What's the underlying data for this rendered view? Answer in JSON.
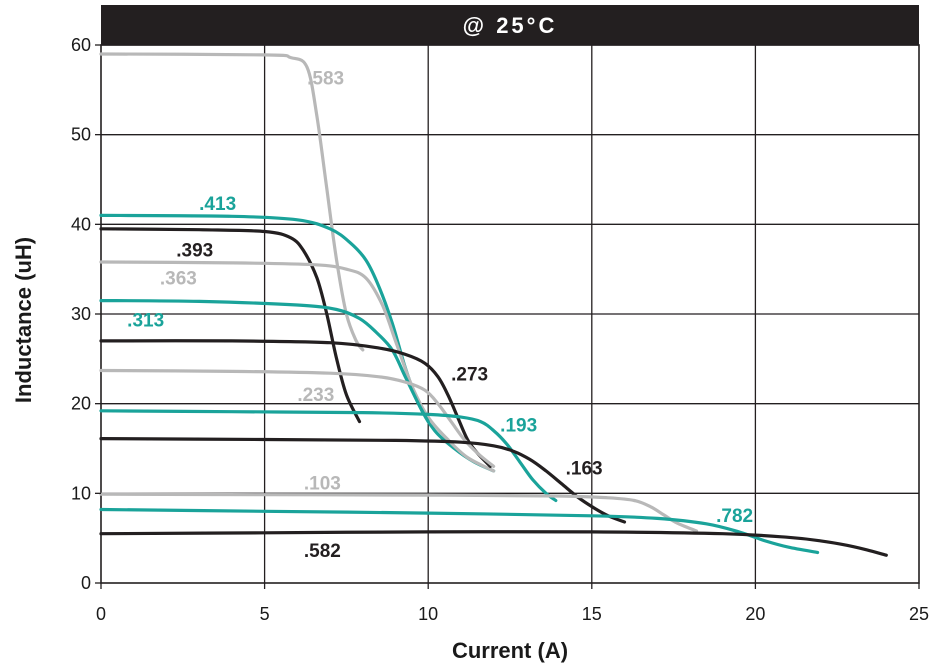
{
  "chart_data": {
    "type": "line",
    "title": "@ 25°C",
    "xlabel": "Current (A)",
    "ylabel": "Inductance (uH)",
    "xlim": [
      0,
      25
    ],
    "ylim": [
      0,
      60
    ],
    "xticks": [
      0,
      5,
      10,
      15,
      20,
      25
    ],
    "yticks": [
      0,
      10,
      20,
      30,
      40,
      50,
      60
    ],
    "xtick_labels": [
      "0",
      "5",
      "10",
      "15",
      "20",
      "25"
    ],
    "ytick_labels": [
      "0",
      "10",
      "20",
      "30",
      "40",
      "50",
      "60"
    ],
    "grid": true,
    "colors": {
      "black": "#231f20",
      "gray": "#b8b8b8",
      "teal": "#1aa39a",
      "title_bar": "#231f20"
    },
    "series": [
      {
        "name": ".583",
        "color": "gray",
        "x": [
          0,
          5,
          5.8,
          6.3,
          6.6,
          6.9,
          7.2,
          7.5,
          7.8,
          8.0
        ],
        "y": [
          59,
          58.9,
          58.6,
          57.5,
          52,
          44,
          36,
          30,
          27,
          26
        ]
      },
      {
        "name": ".413",
        "color": "teal",
        "x": [
          0,
          4,
          6,
          7,
          7.6,
          8.1,
          8.5,
          8.9,
          9.3,
          9.7,
          10.2,
          10.8,
          11.4,
          12.0
        ],
        "y": [
          41,
          40.9,
          40.5,
          39.5,
          38,
          36,
          33,
          29,
          24,
          20,
          17,
          15,
          13.5,
          12.5
        ]
      },
      {
        "name": ".393",
        "color": "black",
        "x": [
          0,
          3,
          5,
          5.8,
          6.2,
          6.6,
          6.9,
          7.2,
          7.5,
          7.9
        ],
        "y": [
          39.5,
          39.4,
          39.2,
          38.5,
          37,
          34,
          30,
          25,
          21,
          18
        ]
      },
      {
        "name": ".363",
        "color": "gray",
        "x": [
          0,
          4,
          6.5,
          7.5,
          8.1,
          8.6,
          9.0,
          9.5,
          10.0,
          10.6,
          11.2,
          12.0
        ],
        "y": [
          35.8,
          35.7,
          35.5,
          35,
          34,
          31,
          27,
          22,
          18.5,
          16,
          14,
          12.5
        ]
      },
      {
        "name": ".313",
        "color": "teal",
        "x": [
          0,
          3,
          6,
          7.2,
          7.9,
          8.4,
          8.9,
          9.3,
          9.7,
          10.0
        ],
        "y": [
          31.5,
          31.4,
          31,
          30.5,
          29.5,
          28,
          26,
          23,
          20,
          18
        ]
      },
      {
        "name": ".273",
        "color": "black",
        "x": [
          0,
          4,
          7,
          8.5,
          9.3,
          9.9,
          10.3,
          10.6,
          10.9,
          11.2,
          11.5,
          11.9
        ],
        "y": [
          27,
          27,
          26.8,
          26.2,
          25.5,
          24.5,
          23,
          21,
          18.5,
          16,
          14.5,
          13
        ]
      },
      {
        "name": ".233",
        "color": "gray",
        "x": [
          0,
          4,
          7,
          8.5,
          9.3,
          9.9,
          10.3,
          10.7,
          11.1,
          11.5,
          12.0
        ],
        "y": [
          23.7,
          23.6,
          23.4,
          23,
          22.4,
          21.5,
          20,
          18,
          16,
          14.5,
          13
        ]
      },
      {
        "name": ".193",
        "color": "teal",
        "x": [
          0,
          4,
          8,
          10,
          11,
          11.6,
          12.0,
          12.4,
          12.8,
          13.2,
          13.6,
          13.9
        ],
        "y": [
          19.2,
          19.1,
          19,
          18.8,
          18.5,
          18,
          17,
          15.5,
          13.5,
          11.5,
          10,
          9.2
        ]
      },
      {
        "name": ".163",
        "color": "black",
        "x": [
          0,
          5,
          9,
          11,
          12,
          12.6,
          13.1,
          13.6,
          14.1,
          14.6,
          15.1,
          15.5,
          16.0
        ],
        "y": [
          16.1,
          16,
          15.9,
          15.7,
          15.3,
          14.7,
          13.8,
          12.5,
          11,
          9.5,
          8.3,
          7.5,
          6.8
        ]
      },
      {
        "name": ".103",
        "color": "gray",
        "x": [
          0,
          5,
          10,
          14,
          15.5,
          16.3,
          16.8,
          17.2,
          17.6,
          18.2
        ],
        "y": [
          9.9,
          9.85,
          9.8,
          9.7,
          9.5,
          9.2,
          8.5,
          7.6,
          6.7,
          5.8
        ]
      },
      {
        "name": ".782",
        "color": "teal",
        "x": [
          0,
          5,
          10,
          15,
          17,
          18.5,
          19.5,
          20.3,
          21.0,
          21.9
        ],
        "y": [
          8.2,
          8.0,
          7.8,
          7.5,
          7.2,
          6.6,
          5.7,
          4.7,
          4.0,
          3.4
        ]
      },
      {
        "name": ".582",
        "color": "black",
        "x": [
          0,
          5,
          10,
          15,
          19,
          21,
          22,
          22.8,
          23.4,
          24.0
        ],
        "y": [
          5.5,
          5.6,
          5.7,
          5.7,
          5.5,
          5.1,
          4.7,
          4.2,
          3.7,
          3.1
        ]
      }
    ],
    "series_labels": [
      {
        "series": ".583",
        "text": ".583",
        "x": 6.3,
        "y": 55.6,
        "color": "gray"
      },
      {
        "series": ".413",
        "text": ".413",
        "x": 3.0,
        "y": 41.6,
        "color": "teal"
      },
      {
        "series": ".393",
        "text": ".393",
        "x": 2.3,
        "y": 36.4,
        "color": "black"
      },
      {
        "series": ".363",
        "text": ".363",
        "x": 1.8,
        "y": 33.3,
        "color": "gray"
      },
      {
        "series": ".313",
        "text": ".313",
        "x": 0.8,
        "y": 28.6,
        "color": "teal"
      },
      {
        "series": ".273",
        "text": ".273",
        "x": 10.7,
        "y": 22.6,
        "color": "black"
      },
      {
        "series": ".233",
        "text": ".233",
        "x": 6.0,
        "y": 20.3,
        "color": "gray"
      },
      {
        "series": ".193",
        "text": ".193",
        "x": 12.2,
        "y": 16.9,
        "color": "teal"
      },
      {
        "series": ".163",
        "text": ".163",
        "x": 14.2,
        "y": 12.1,
        "color": "black"
      },
      {
        "series": ".103",
        "text": ".103",
        "x": 6.2,
        "y": 10.4,
        "color": "gray"
      },
      {
        "series": ".782",
        "text": ".782",
        "x": 18.8,
        "y": 6.8,
        "color": "teal"
      },
      {
        "series": ".582",
        "text": ".582",
        "x": 6.2,
        "y": 2.9,
        "color": "black"
      }
    ]
  }
}
